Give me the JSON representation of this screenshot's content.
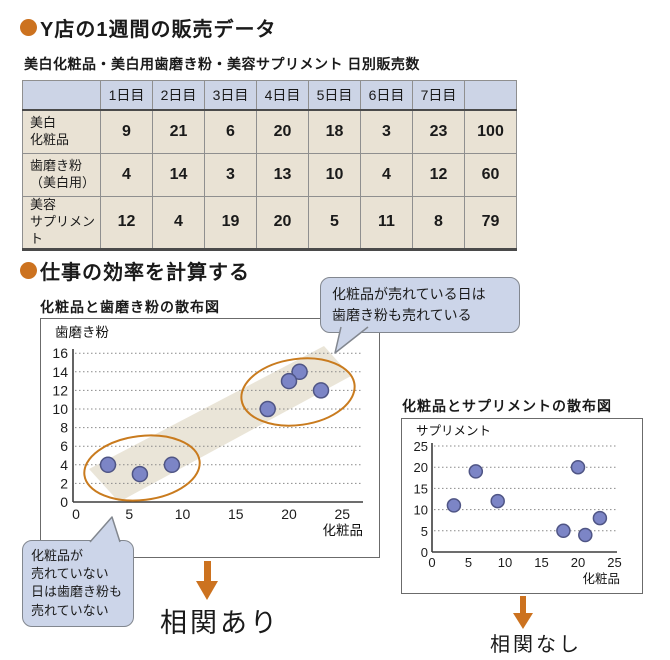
{
  "colors": {
    "accent_orange": "#cc721f",
    "point_fill": "#7c85c6",
    "point_stroke": "#4f5585",
    "bubble_bg": "#ccd5e9",
    "table_header_bg": "#ccd4e6",
    "table_body_bg": "#e9e2d4",
    "band_fill": "#e6e0d1",
    "ellipse_stroke": "#c97b1e"
  },
  "headings": {
    "section1": "Y店の1週間の販売データ",
    "section2": "仕事の効率を計算する"
  },
  "table": {
    "caption": "美白化粧品・美白用歯磨き粉・美容サプリメント  日別販売数",
    "day_headers": [
      "1日目",
      "2日目",
      "3日目",
      "4日目",
      "5日目",
      "6日目",
      "7日目",
      ""
    ],
    "rows": [
      {
        "label": "美白\n化粧品",
        "values": [
          9,
          21,
          6,
          20,
          18,
          3,
          23,
          100
        ]
      },
      {
        "label": "歯磨き粉\n（美白用）",
        "values": [
          4,
          14,
          3,
          13,
          10,
          4,
          12,
          60
        ]
      },
      {
        "label": "美容\nサプリメント",
        "values": [
          12,
          4,
          19,
          20,
          5,
          11,
          8,
          79
        ]
      }
    ]
  },
  "bubbles": {
    "top": "化粧品が売れている日は\n歯磨き粉も売れている",
    "bottom": "化粧品が\n売れていない\n日は歯磨き粉も\n売れていない"
  },
  "chart_data": [
    {
      "type": "scatter",
      "title": "化粧品と歯磨き粉の散布図",
      "xlabel": "化粧品",
      "ylabel": "歯磨き粉",
      "xlim": [
        0,
        25
      ],
      "ylim": [
        0,
        16
      ],
      "xticks": [
        0,
        5,
        10,
        15,
        20,
        25
      ],
      "yticks": [
        0,
        2,
        4,
        6,
        8,
        10,
        12,
        14,
        16
      ],
      "points": [
        [
          9,
          4
        ],
        [
          21,
          14
        ],
        [
          6,
          3
        ],
        [
          20,
          13
        ],
        [
          18,
          10
        ],
        [
          3,
          4
        ],
        [
          23,
          12
        ]
      ],
      "grid": "dotted",
      "annotations": {
        "highlight_band": true,
        "group_ellipses": 2
      },
      "conclusion": "相関あり"
    },
    {
      "type": "scatter",
      "title": "化粧品とサプリメントの散布図",
      "xlabel": "化粧品",
      "ylabel": "サプリメント",
      "xlim": [
        0,
        25
      ],
      "ylim": [
        0,
        25
      ],
      "xticks": [
        0,
        5,
        10,
        15,
        20,
        25
      ],
      "yticks": [
        0,
        5,
        10,
        15,
        20,
        25
      ],
      "points": [
        [
          9,
          12
        ],
        [
          21,
          4
        ],
        [
          6,
          19
        ],
        [
          20,
          20
        ],
        [
          18,
          5
        ],
        [
          3,
          11
        ],
        [
          23,
          8
        ]
      ],
      "grid": "dotted",
      "annotations": {},
      "conclusion": "相関なし"
    }
  ]
}
